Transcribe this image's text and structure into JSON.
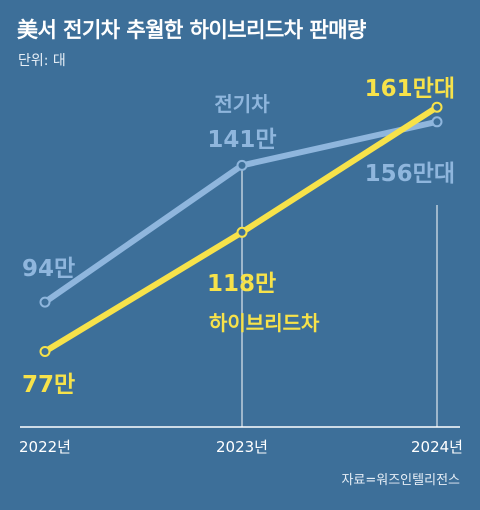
{
  "header": {
    "title": "美서 전기차 추월한 하이브리드차 판매량",
    "unit": "단위: 대"
  },
  "source": "자료=워즈인텔리전스",
  "colors": {
    "background": "#3d6f99",
    "ev": "#8fb6dd",
    "hybrid": "#f7e24a",
    "axis": "#ffffff"
  },
  "chart_data": {
    "type": "line",
    "categories": [
      "2022년",
      "2023년",
      "2024년"
    ],
    "series": [
      {
        "name": "전기차",
        "values": [
          94,
          141,
          156
        ],
        "labels": [
          "94만",
          "141만",
          "156만대"
        ]
      },
      {
        "name": "하이브리드차",
        "values": [
          77,
          118,
          161
        ],
        "labels": [
          "77만",
          "118만",
          "161만대"
        ]
      }
    ],
    "ylim": [
      50,
      180
    ],
    "grid": false
  }
}
